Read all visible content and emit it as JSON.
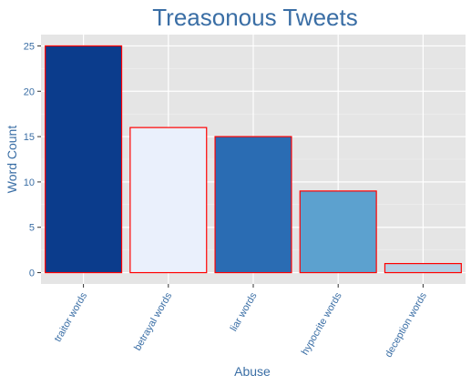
{
  "chart_data": {
    "type": "bar",
    "title": "Treasonous Tweets",
    "xlabel": "Abuse",
    "ylabel": "Word Count",
    "categories": [
      "traitor words",
      "betrayal words",
      "liar words",
      "hypocrite words",
      "deception words"
    ],
    "values": [
      25,
      16,
      15,
      9,
      1
    ],
    "bar_colors": [
      "#0b3c8c",
      "#eaf0fc",
      "#2a6cb3",
      "#5ca1cf",
      "#b4cfe4"
    ],
    "bar_outline_color": "#ff0000",
    "yticks": [
      0,
      5,
      10,
      15,
      20,
      25
    ],
    "ylim": [
      -1.25,
      26.25
    ],
    "grid": true,
    "text_color": "#3a6ea5",
    "panel_color": "#e5e5e5"
  }
}
